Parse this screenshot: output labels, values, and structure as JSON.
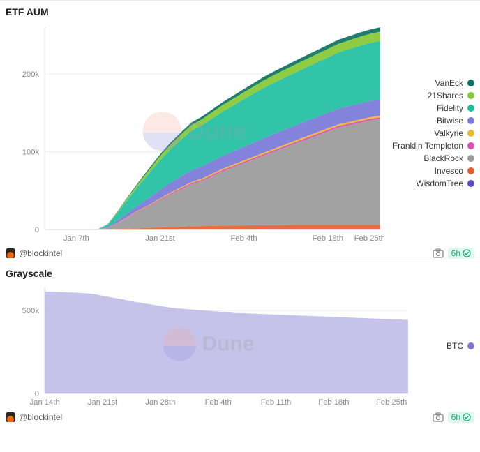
{
  "panels": {
    "etf": {
      "title": "ETF AUM",
      "handle": "@blockintel",
      "refresh_label": "6h",
      "chart": {
        "type": "area-stacked",
        "background": "#ffffff",
        "grid_color": "#eeeeee",
        "axis_color": "#cccccc",
        "tick_font_size": 11,
        "tick_color": "#888888",
        "ylim": [
          0,
          260000
        ],
        "yticks": [
          0,
          100000,
          200000
        ],
        "ytick_labels": [
          "0",
          "100k",
          "200k"
        ],
        "x_labels": [
          "Jan 7th",
          "Jan 21st",
          "Feb 4th",
          "Feb 18th",
          "Feb 25th"
        ],
        "x_positions": [
          3,
          11,
          19,
          27,
          31
        ],
        "n_points": 33,
        "legend": [
          {
            "name": "VanEck",
            "color": "#0b7263"
          },
          {
            "name": "21Shares",
            "color": "#84c833"
          },
          {
            "name": "Fidelity",
            "color": "#1fbfa2"
          },
          {
            "name": "Bitwise",
            "color": "#7a78d8"
          },
          {
            "name": "Valkyrie",
            "color": "#e8b828"
          },
          {
            "name": "Franklin Templeton",
            "color": "#d94fb2"
          },
          {
            "name": "BlackRock",
            "color": "#9a9a9a"
          },
          {
            "name": "Invesco",
            "color": "#e85f2e"
          },
          {
            "name": "WisdomTree",
            "color": "#5a4cc4"
          }
        ],
        "series": {
          "WisdomTree": [
            0,
            0,
            0,
            0,
            0,
            0,
            0,
            50,
            80,
            100,
            120,
            140,
            160,
            180,
            200,
            220,
            240,
            250,
            260,
            270,
            280,
            285,
            290,
            295,
            300,
            305,
            310,
            315,
            318,
            320,
            322,
            324,
            325
          ],
          "Invesco": [
            0,
            0,
            0,
            0,
            0,
            0,
            0,
            500,
            1000,
            1500,
            2000,
            2500,
            3000,
            3500,
            4000,
            4200,
            4400,
            4600,
            4800,
            5000,
            5100,
            5200,
            5300,
            5400,
            5500,
            5500,
            5500,
            5500,
            5500,
            5500,
            5500,
            5500,
            5500
          ],
          "BlackRock": [
            0,
            0,
            0,
            0,
            0,
            0,
            2000,
            8000,
            15000,
            22000,
            28000,
            35000,
            42000,
            48000,
            54000,
            58000,
            64000,
            70000,
            75000,
            80000,
            85000,
            90000,
            95000,
            100000,
            105000,
            110000,
            115000,
            120000,
            125000,
            128000,
            131000,
            134000,
            136000
          ],
          "Franklin Templeton": [
            0,
            0,
            0,
            0,
            0,
            0,
            200,
            400,
            600,
            800,
            1000,
            1200,
            1300,
            1400,
            1500,
            1600,
            1700,
            1750,
            1800,
            1850,
            1900,
            1950,
            2000,
            2050,
            2100,
            2150,
            2180,
            2200,
            2220,
            2240,
            2260,
            2280,
            2300
          ],
          "Valkyrie": [
            0,
            0,
            0,
            0,
            0,
            0,
            100,
            300,
            500,
            700,
            900,
            1100,
            1200,
            1300,
            1400,
            1500,
            1600,
            1650,
            1700,
            1750,
            1800,
            1850,
            1900,
            1950,
            2000,
            2050,
            2080,
            2100,
            2120,
            2140,
            2160,
            2180,
            2200
          ],
          "Bitwise": [
            0,
            0,
            0,
            0,
            0,
            0,
            1000,
            3000,
            5000,
            7000,
            9000,
            11000,
            12500,
            14000,
            15000,
            15500,
            16000,
            16500,
            17000,
            17500,
            18000,
            18500,
            19000,
            19200,
            19400,
            19600,
            19800,
            20000,
            20200,
            20400,
            20600,
            20800,
            21000
          ],
          "Fidelity": [
            0,
            0,
            0,
            0,
            0,
            0,
            3000,
            10000,
            18000,
            25000,
            32000,
            38000,
            43000,
            47000,
            51000,
            53000,
            55000,
            57000,
            59000,
            61000,
            63000,
            65000,
            66000,
            67000,
            68000,
            69000,
            70000,
            71000,
            72000,
            73000,
            74000,
            74500,
            75000
          ],
          "21Shares": [
            0,
            0,
            0,
            0,
            0,
            0,
            500,
            1500,
            2500,
            3500,
            4500,
            5500,
            6200,
            6800,
            7400,
            7800,
            8200,
            8500,
            8800,
            9100,
            9400,
            9700,
            10000,
            10200,
            10400,
            10600,
            10800,
            11000,
            11200,
            11400,
            11600,
            11800,
            12000
          ],
          "VanEck": [
            0,
            0,
            0,
            0,
            0,
            0,
            200,
            600,
            1000,
            1400,
            1800,
            2200,
            2500,
            2800,
            3100,
            3300,
            3500,
            3700,
            3900,
            4100,
            4300,
            4500,
            4600,
            4700,
            4800,
            4900,
            5000,
            5100,
            5200,
            5300,
            5400,
            5500,
            5600
          ]
        },
        "stack_order": [
          "WisdomTree",
          "Invesco",
          "BlackRock",
          "Franklin Templeton",
          "Valkyrie",
          "Bitwise",
          "Fidelity",
          "21Shares",
          "VanEck"
        ]
      }
    },
    "grayscale": {
      "title": "Grayscale",
      "handle": "@blockintel",
      "refresh_label": "6h",
      "chart": {
        "type": "area",
        "background": "#ffffff",
        "grid_color": "#eeeeee",
        "axis_color": "#cccccc",
        "tick_font_size": 11,
        "tick_color": "#888888",
        "ylim": [
          0,
          640000
        ],
        "yticks": [
          0,
          500000
        ],
        "ytick_labels": [
          "0",
          "500k"
        ],
        "x_labels": [
          "Jan 14th",
          "Jan 21st",
          "Jan 28th",
          "Feb 4th",
          "Feb 11th",
          "Feb 18th",
          "Feb 25th"
        ],
        "x_positions": [
          0,
          7,
          14,
          21,
          28,
          35,
          42
        ],
        "n_points": 45,
        "legend": [
          {
            "name": "BTC",
            "color": "#7a78d8"
          }
        ],
        "series": {
          "BTC": [
            616000,
            614000,
            612000,
            610000,
            608000,
            605000,
            600000,
            590000,
            580000,
            572000,
            562000,
            552000,
            544000,
            536000,
            528000,
            520000,
            514000,
            510000,
            506000,
            502000,
            498000,
            494000,
            490000,
            486000,
            484000,
            482000,
            480000,
            478000,
            476000,
            474000,
            472000,
            470000,
            468000,
            466000,
            464000,
            462000,
            460000,
            458000,
            456000,
            454000,
            452000,
            450000,
            448000,
            446000,
            444000
          ]
        },
        "fill_color": "#b1afe3",
        "fill_opacity": 0.75
      }
    }
  },
  "watermark": {
    "text": "Dune",
    "top_color": "#f6a89a",
    "bottom_color": "#8c8cd8"
  }
}
